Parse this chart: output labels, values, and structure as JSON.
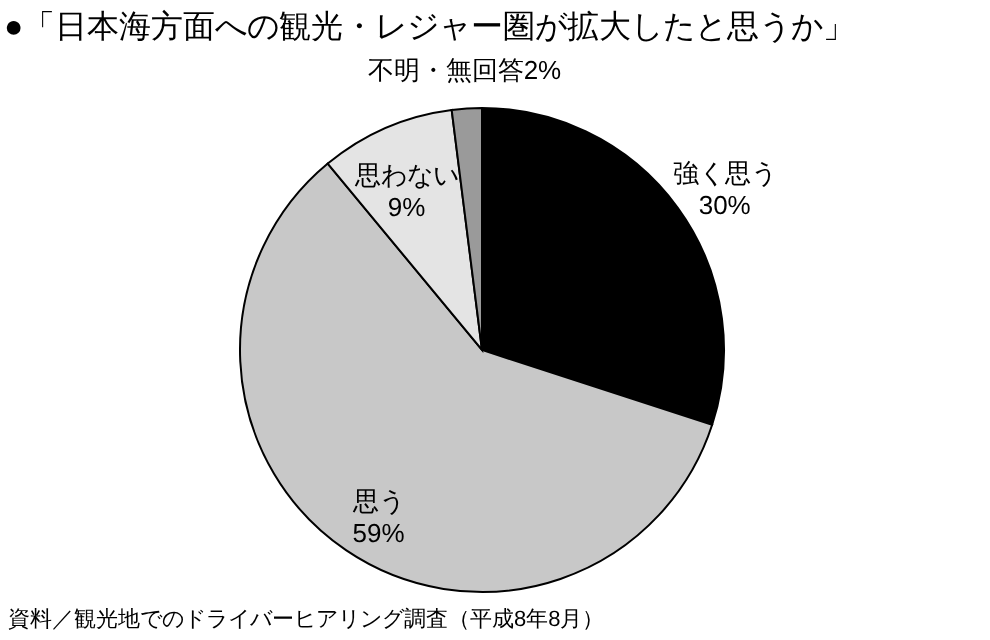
{
  "chart_data": {
    "type": "pie",
    "title": "●「日本海方面への観光・レジャー圏が拡大したと思うか」",
    "categories": [
      "強く思う",
      "思う",
      "思わない",
      "不明・無回答"
    ],
    "values": [
      30,
      59,
      9,
      2
    ],
    "value_labels": [
      "30%",
      "59%",
      "9%",
      "2%"
    ],
    "colors": [
      "#000000",
      "#c8c8c8",
      "#e4e4e4",
      "#9a9a9a"
    ],
    "annotations": [
      "資料／観光地でのドライバーヒアリング調査（平成8年8月）"
    ]
  }
}
